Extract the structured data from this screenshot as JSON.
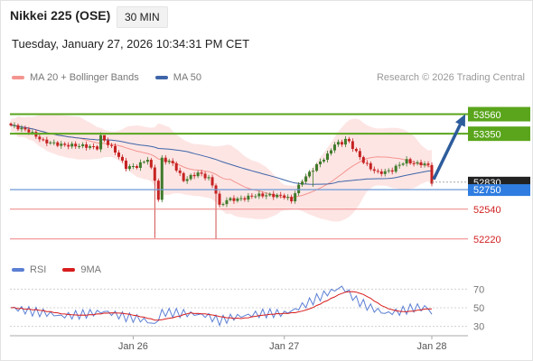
{
  "header": {
    "title": "Nikkei 225 (OSE)",
    "timeframe": "30 MIN",
    "datetime": "Tuesday, January 27, 2026 10:34:31 PM CET"
  },
  "legend": {
    "items": [
      {
        "label": "MA 20 + Bollinger Bands",
        "color": "#f4958f"
      },
      {
        "label": "MA 50",
        "color": "#3e65a8"
      }
    ],
    "credit": "Research © 2026 Trading Central"
  },
  "rsi_legend": {
    "items": [
      {
        "label": "RSI",
        "color": "#5b7fd4"
      },
      {
        "label": "9MA",
        "color": "#d81c1c"
      }
    ]
  },
  "colors": {
    "resistance": "#5aa51c",
    "support": "#ef8181",
    "pivot": "#2f7de1",
    "current": "#222222",
    "arrow": "#2d5c9c",
    "candle_up": "#3f7a2a",
    "candle_down": "#c62222",
    "band_fill": "#fde0df"
  },
  "chart_data": [
    {
      "type": "candlestick",
      "x_ticks": [
        "Jan 26",
        "Jan 27",
        "Jan 28"
      ],
      "ylim": [
        52150,
        53720
      ],
      "series": [
        {
          "name": "MA 20 + Bollinger Bands"
        },
        {
          "name": "MA 50"
        }
      ],
      "levels": [
        {
          "value": 53560,
          "label": "53560",
          "kind": "resistance"
        },
        {
          "value": 53350,
          "label": "53350",
          "kind": "resistance"
        },
        {
          "value": 52830,
          "label": "52830",
          "kind": "current"
        },
        {
          "value": 52750,
          "label": "52750",
          "kind": "pivot"
        },
        {
          "value": 52540,
          "label": "52540",
          "kind": "support"
        },
        {
          "value": 52220,
          "label": "52220",
          "kind": "support"
        }
      ],
      "current_price": 52830,
      "forecast": {
        "from": 52860,
        "to": 53560
      }
    },
    {
      "type": "line",
      "title": "RSI",
      "ylim": [
        20,
        80
      ],
      "y_ticks": [
        70,
        50,
        30
      ],
      "series": [
        {
          "name": "RSI"
        },
        {
          "name": "9MA"
        }
      ]
    }
  ]
}
